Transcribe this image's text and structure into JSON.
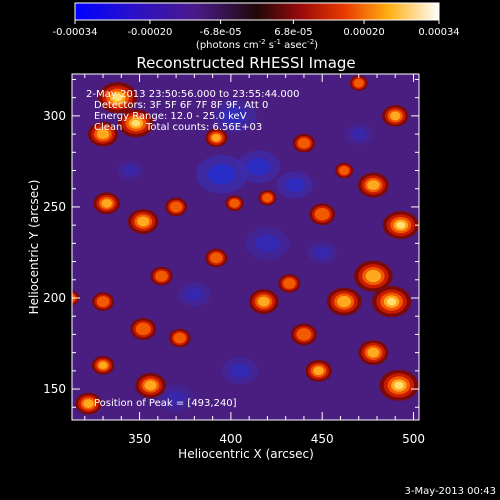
{
  "colorbar": {
    "tick_labels": [
      "-0.00034",
      "-0.00020",
      "-6.8e-05",
      "6.8e-05",
      "0.00020",
      "0.00034"
    ],
    "range": [
      -0.00034,
      0.00034
    ],
    "unit_text": "(photons cm",
    "unit_sup1": "-2",
    "unit_mid": " s",
    "unit_sup2": "-1",
    "unit_end": " asec",
    "unit_sup3": "-2",
    "unit_close": ")"
  },
  "title": "Reconstructed RHESSI Image",
  "annotations": {
    "time_range": "2-May-2013 23:50:56.000 to 23:55:44.000",
    "detectors": "Detectors: 3F 5F 6F 7F 8F 9F, Att 0",
    "energy": "Energy Range: 12.0 - 25.0 keV",
    "algorithm": "Clean",
    "counts": "Total counts: 6.56E+03",
    "peak": "Position of Peak = [493,240]"
  },
  "axes": {
    "xlabel": "Heliocentric X (arcsec)",
    "ylabel": "Heliocentric Y (arcsec)",
    "xticks": [
      350,
      400,
      450,
      500
    ],
    "yticks": [
      150,
      200,
      250,
      300
    ],
    "xlim": [
      313,
      503
    ],
    "ylim": [
      133,
      323
    ]
  },
  "footer_date": "3-May-2013 00:43",
  "image": {
    "blobs": [
      {
        "x": 338,
        "y": 310,
        "s": 10,
        "a": 0.9
      },
      {
        "x": 348,
        "y": 296,
        "s": 9,
        "a": 1.0
      },
      {
        "x": 330,
        "y": 290,
        "s": 8,
        "a": 0.7
      },
      {
        "x": 332,
        "y": 252,
        "s": 7,
        "a": 0.7
      },
      {
        "x": 352,
        "y": 242,
        "s": 8,
        "a": 0.75
      },
      {
        "x": 370,
        "y": 250,
        "s": 6,
        "a": 0.5
      },
      {
        "x": 392,
        "y": 288,
        "s": 6,
        "a": 0.6
      },
      {
        "x": 392,
        "y": 222,
        "s": 6,
        "a": 0.55
      },
      {
        "x": 362,
        "y": 212,
        "s": 6,
        "a": 0.55
      },
      {
        "x": 330,
        "y": 198,
        "s": 6,
        "a": 0.5
      },
      {
        "x": 352,
        "y": 183,
        "s": 7,
        "a": 0.55
      },
      {
        "x": 372,
        "y": 178,
        "s": 6,
        "a": 0.45
      },
      {
        "x": 330,
        "y": 163,
        "s": 6,
        "a": 0.65
      },
      {
        "x": 356,
        "y": 152,
        "s": 8,
        "a": 0.75
      },
      {
        "x": 322,
        "y": 142,
        "s": 7,
        "a": 0.7
      },
      {
        "x": 418,
        "y": 198,
        "s": 8,
        "a": 0.6
      },
      {
        "x": 432,
        "y": 208,
        "s": 6,
        "a": 0.55
      },
      {
        "x": 440,
        "y": 180,
        "s": 7,
        "a": 0.55
      },
      {
        "x": 462,
        "y": 198,
        "s": 9,
        "a": 0.8
      },
      {
        "x": 478,
        "y": 212,
        "s": 10,
        "a": 0.8
      },
      {
        "x": 488,
        "y": 198,
        "s": 10,
        "a": 0.85
      },
      {
        "x": 478,
        "y": 170,
        "s": 8,
        "a": 0.65
      },
      {
        "x": 492,
        "y": 152,
        "s": 10,
        "a": 0.85
      },
      {
        "x": 448,
        "y": 160,
        "s": 7,
        "a": 0.7
      },
      {
        "x": 490,
        "y": 300,
        "s": 7,
        "a": 0.65
      },
      {
        "x": 478,
        "y": 262,
        "s": 8,
        "a": 0.8
      },
      {
        "x": 493,
        "y": 240,
        "s": 9,
        "a": 1.0
      },
      {
        "x": 450,
        "y": 246,
        "s": 7,
        "a": 0.55
      },
      {
        "x": 440,
        "y": 285,
        "s": 6,
        "a": 0.55
      },
      {
        "x": 462,
        "y": 270,
        "s": 5,
        "a": 0.45
      },
      {
        "x": 402,
        "y": 252,
        "s": 5,
        "a": 0.45
      },
      {
        "x": 420,
        "y": 255,
        "s": 5,
        "a": 0.4
      },
      {
        "x": 470,
        "y": 318,
        "s": 5,
        "a": 0.35
      },
      {
        "x": 312,
        "y": 200,
        "s": 5,
        "a": 0.45
      }
    ],
    "troughs": [
      {
        "x": 395,
        "y": 268,
        "s": 14,
        "a": 0.7
      },
      {
        "x": 415,
        "y": 272,
        "s": 12,
        "a": 0.6
      },
      {
        "x": 435,
        "y": 262,
        "s": 10,
        "a": 0.55
      },
      {
        "x": 402,
        "y": 300,
        "s": 12,
        "a": 0.5
      },
      {
        "x": 420,
        "y": 230,
        "s": 12,
        "a": 0.45
      },
      {
        "x": 380,
        "y": 202,
        "s": 9,
        "a": 0.4
      },
      {
        "x": 450,
        "y": 225,
        "s": 8,
        "a": 0.4
      },
      {
        "x": 370,
        "y": 145,
        "s": 10,
        "a": 0.35
      },
      {
        "x": 405,
        "y": 160,
        "s": 10,
        "a": 0.45
      },
      {
        "x": 470,
        "y": 290,
        "s": 8,
        "a": 0.35
      },
      {
        "x": 345,
        "y": 270,
        "s": 7,
        "a": 0.35
      }
    ]
  }
}
